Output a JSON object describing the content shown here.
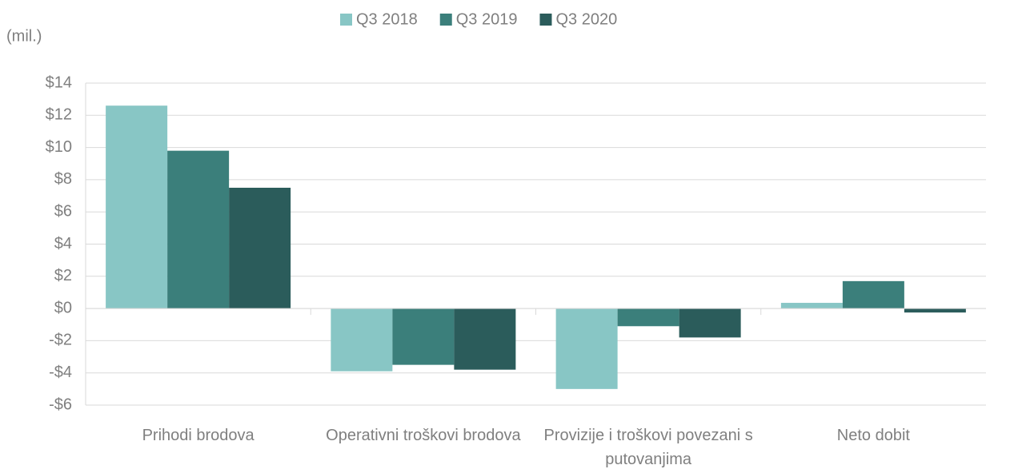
{
  "chart_data": {
    "type": "bar",
    "y_label": "(mil.)",
    "categories": [
      "Prihodi brodova",
      "Operativni troškovi brodova",
      "Provizije i troškovi povezani s putovanjima",
      "Neto dobit"
    ],
    "series": [
      {
        "name": "Q3 2018",
        "color": "#88c6c5",
        "values": [
          12.6,
          -3.9,
          -5.0,
          0.35
        ]
      },
      {
        "name": "Q3 2019",
        "color": "#3b7f7b",
        "values": [
          9.8,
          -3.5,
          -1.1,
          1.7
        ]
      },
      {
        "name": "Q3 2020",
        "color": "#2b5c5b",
        "values": [
          7.5,
          -3.8,
          -1.8,
          -0.25
        ]
      }
    ],
    "ylim": [
      -6,
      14
    ],
    "yticks": [
      {
        "value": -6,
        "label": "-$6"
      },
      {
        "value": -4,
        "label": "-$4"
      },
      {
        "value": -2,
        "label": "-$2"
      },
      {
        "value": 0,
        "label": "$0"
      },
      {
        "value": 2,
        "label": "$2"
      },
      {
        "value": 4,
        "label": "$4"
      },
      {
        "value": 6,
        "label": "$6"
      },
      {
        "value": 8,
        "label": "$8"
      },
      {
        "value": 10,
        "label": "$10"
      },
      {
        "value": 12,
        "label": "$12"
      },
      {
        "value": 14,
        "label": "$14"
      }
    ],
    "grid": true,
    "legend": "top"
  }
}
